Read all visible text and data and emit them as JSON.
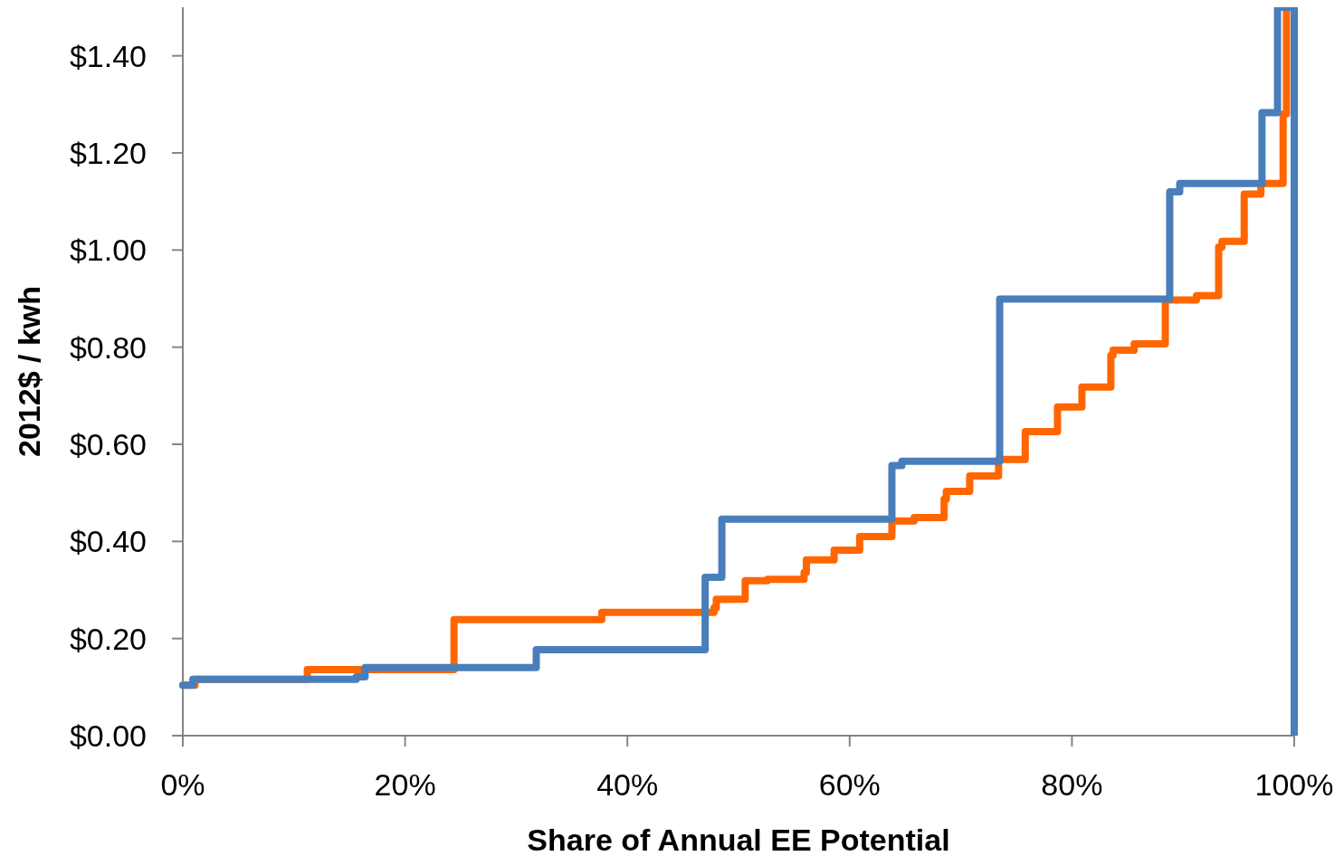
{
  "chart_data": {
    "type": "step",
    "xlabel": "Share of Annual EE Potential",
    "ylabel": "2012$ / kwh",
    "xlim": [
      0,
      100
    ],
    "xticks": [
      {
        "value": 0,
        "label": "0%"
      },
      {
        "value": 20,
        "label": "20%"
      },
      {
        "value": 40,
        "label": "40%"
      },
      {
        "value": 60,
        "label": "60%"
      },
      {
        "value": 80,
        "label": "80%"
      },
      {
        "value": 100,
        "label": "100%"
      }
    ],
    "ylim": [
      0,
      1.5
    ],
    "yticks": [
      {
        "value": 0,
        "label": "$0.00"
      },
      {
        "value": 0.2,
        "label": "$0.20"
      },
      {
        "value": 0.4,
        "label": "$0.40"
      },
      {
        "value": 0.6,
        "label": "$0.60"
      },
      {
        "value": 0.8,
        "label": "$0.80"
      },
      {
        "value": 1,
        "label": "$1.00"
      },
      {
        "value": 1.2,
        "label": "$1.20"
      },
      {
        "value": 1.4,
        "label": "$1.40"
      }
    ],
    "grid": false,
    "series": [
      {
        "color": "#ff6600",
        "x": [
          0,
          1.1,
          11.2,
          24.4,
          37.7,
          47.8,
          48.0,
          50.6,
          52.6,
          55.9,
          56.1,
          58.6,
          60.9,
          63.8,
          65.8,
          68.5,
          68.7,
          70.8,
          73.4,
          75.8,
          78.7,
          80.9,
          83.5,
          83.7,
          85.6,
          88.4,
          91.2,
          93.2,
          93.5,
          95.5,
          97.0,
          99.0,
          99.3
        ],
        "values": [
          0.104,
          0.116,
          0.136,
          0.239,
          0.254,
          0.263,
          0.281,
          0.319,
          0.322,
          0.336,
          0.362,
          0.382,
          0.41,
          0.442,
          0.449,
          0.487,
          0.503,
          0.535,
          0.569,
          0.626,
          0.677,
          0.718,
          0.783,
          0.794,
          0.807,
          0.897,
          0.906,
          1.006,
          1.018,
          1.115,
          1.137,
          1.28,
          1.5
        ]
      },
      {
        "color": "#4a7ebb",
        "x": [
          0,
          0.9,
          15.6,
          16.4,
          31.8,
          47.0,
          48.5,
          63.8,
          64.7,
          73.5,
          88.8,
          89.7,
          97.1,
          98.5,
          100
        ],
        "values": [
          0.104,
          0.116,
          0.121,
          0.14,
          0.177,
          0.326,
          0.446,
          0.556,
          0.565,
          0.899,
          1.12,
          1.137,
          1.283,
          1.5,
          0
        ]
      }
    ]
  }
}
